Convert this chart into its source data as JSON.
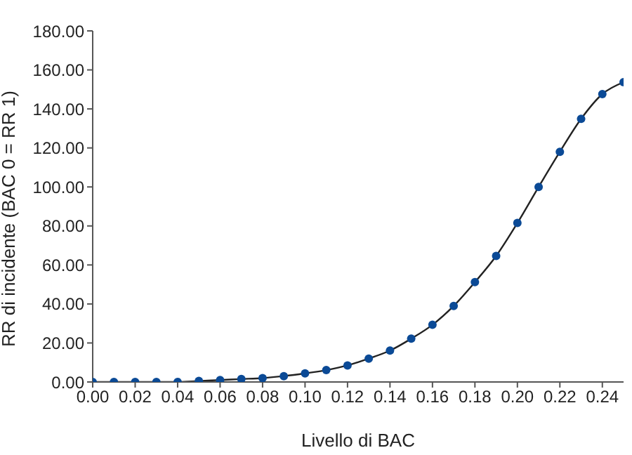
{
  "chart_data": {
    "type": "line",
    "xlabel": "Livello di BAC",
    "ylabel": "RR di incidente (BAC 0 = RR 1)",
    "x": [
      0,
      0.01,
      0.02,
      0.03,
      0.04,
      0.05,
      0.06,
      0.07,
      0.08,
      0.09,
      0.1,
      0.11,
      0.12,
      0.13,
      0.14,
      0.15,
      0.16,
      0.17,
      0.18,
      0.19,
      0.2,
      0.21,
      0.22,
      0.23,
      0.24,
      0.25
    ],
    "series": [
      {
        "color": "#0b4a96",
        "values": [
          0,
          0,
          0,
          0,
          0,
          0.5,
          1,
          1.5,
          2,
          3,
          4.4,
          6.1,
          8.5,
          12,
          16.1,
          22.2,
          29.3,
          39,
          51.2,
          64.6,
          81.5,
          100,
          118,
          134.9,
          147.6,
          153.7
        ]
      }
    ],
    "xlim": [
      0,
      0.25
    ],
    "xticks": [
      {
        "value": 0,
        "label": "0.00"
      },
      {
        "value": 0.02,
        "label": "0.02"
      },
      {
        "value": 0.04,
        "label": "0.04"
      },
      {
        "value": 0.06,
        "label": "0.06"
      },
      {
        "value": 0.08,
        "label": "0.08"
      },
      {
        "value": 0.1,
        "label": "0.10"
      },
      {
        "value": 0.12,
        "label": "0.12"
      },
      {
        "value": 0.14,
        "label": "0.14"
      },
      {
        "value": 0.16,
        "label": "0.16"
      },
      {
        "value": 0.18,
        "label": "0.18"
      },
      {
        "value": 0.2,
        "label": "0.20"
      },
      {
        "value": 0.22,
        "label": "0.22"
      },
      {
        "value": 0.24,
        "label": "0.24"
      }
    ],
    "ylim": [
      0,
      180
    ],
    "yticks": [
      {
        "value": 0,
        "label": "0.00"
      },
      {
        "value": 20,
        "label": "20.00"
      },
      {
        "value": 40,
        "label": "40.00"
      },
      {
        "value": 60,
        "label": "60.00"
      },
      {
        "value": 80,
        "label": "80.00"
      },
      {
        "value": 100,
        "label": "100.00"
      },
      {
        "value": 120,
        "label": "120.00"
      },
      {
        "value": 140,
        "label": "140.00"
      },
      {
        "value": 160,
        "label": "160.00"
      },
      {
        "value": 180,
        "label": "180.00"
      }
    ],
    "grid": false,
    "legend": false,
    "marker": "circle",
    "line_style": "solid"
  }
}
